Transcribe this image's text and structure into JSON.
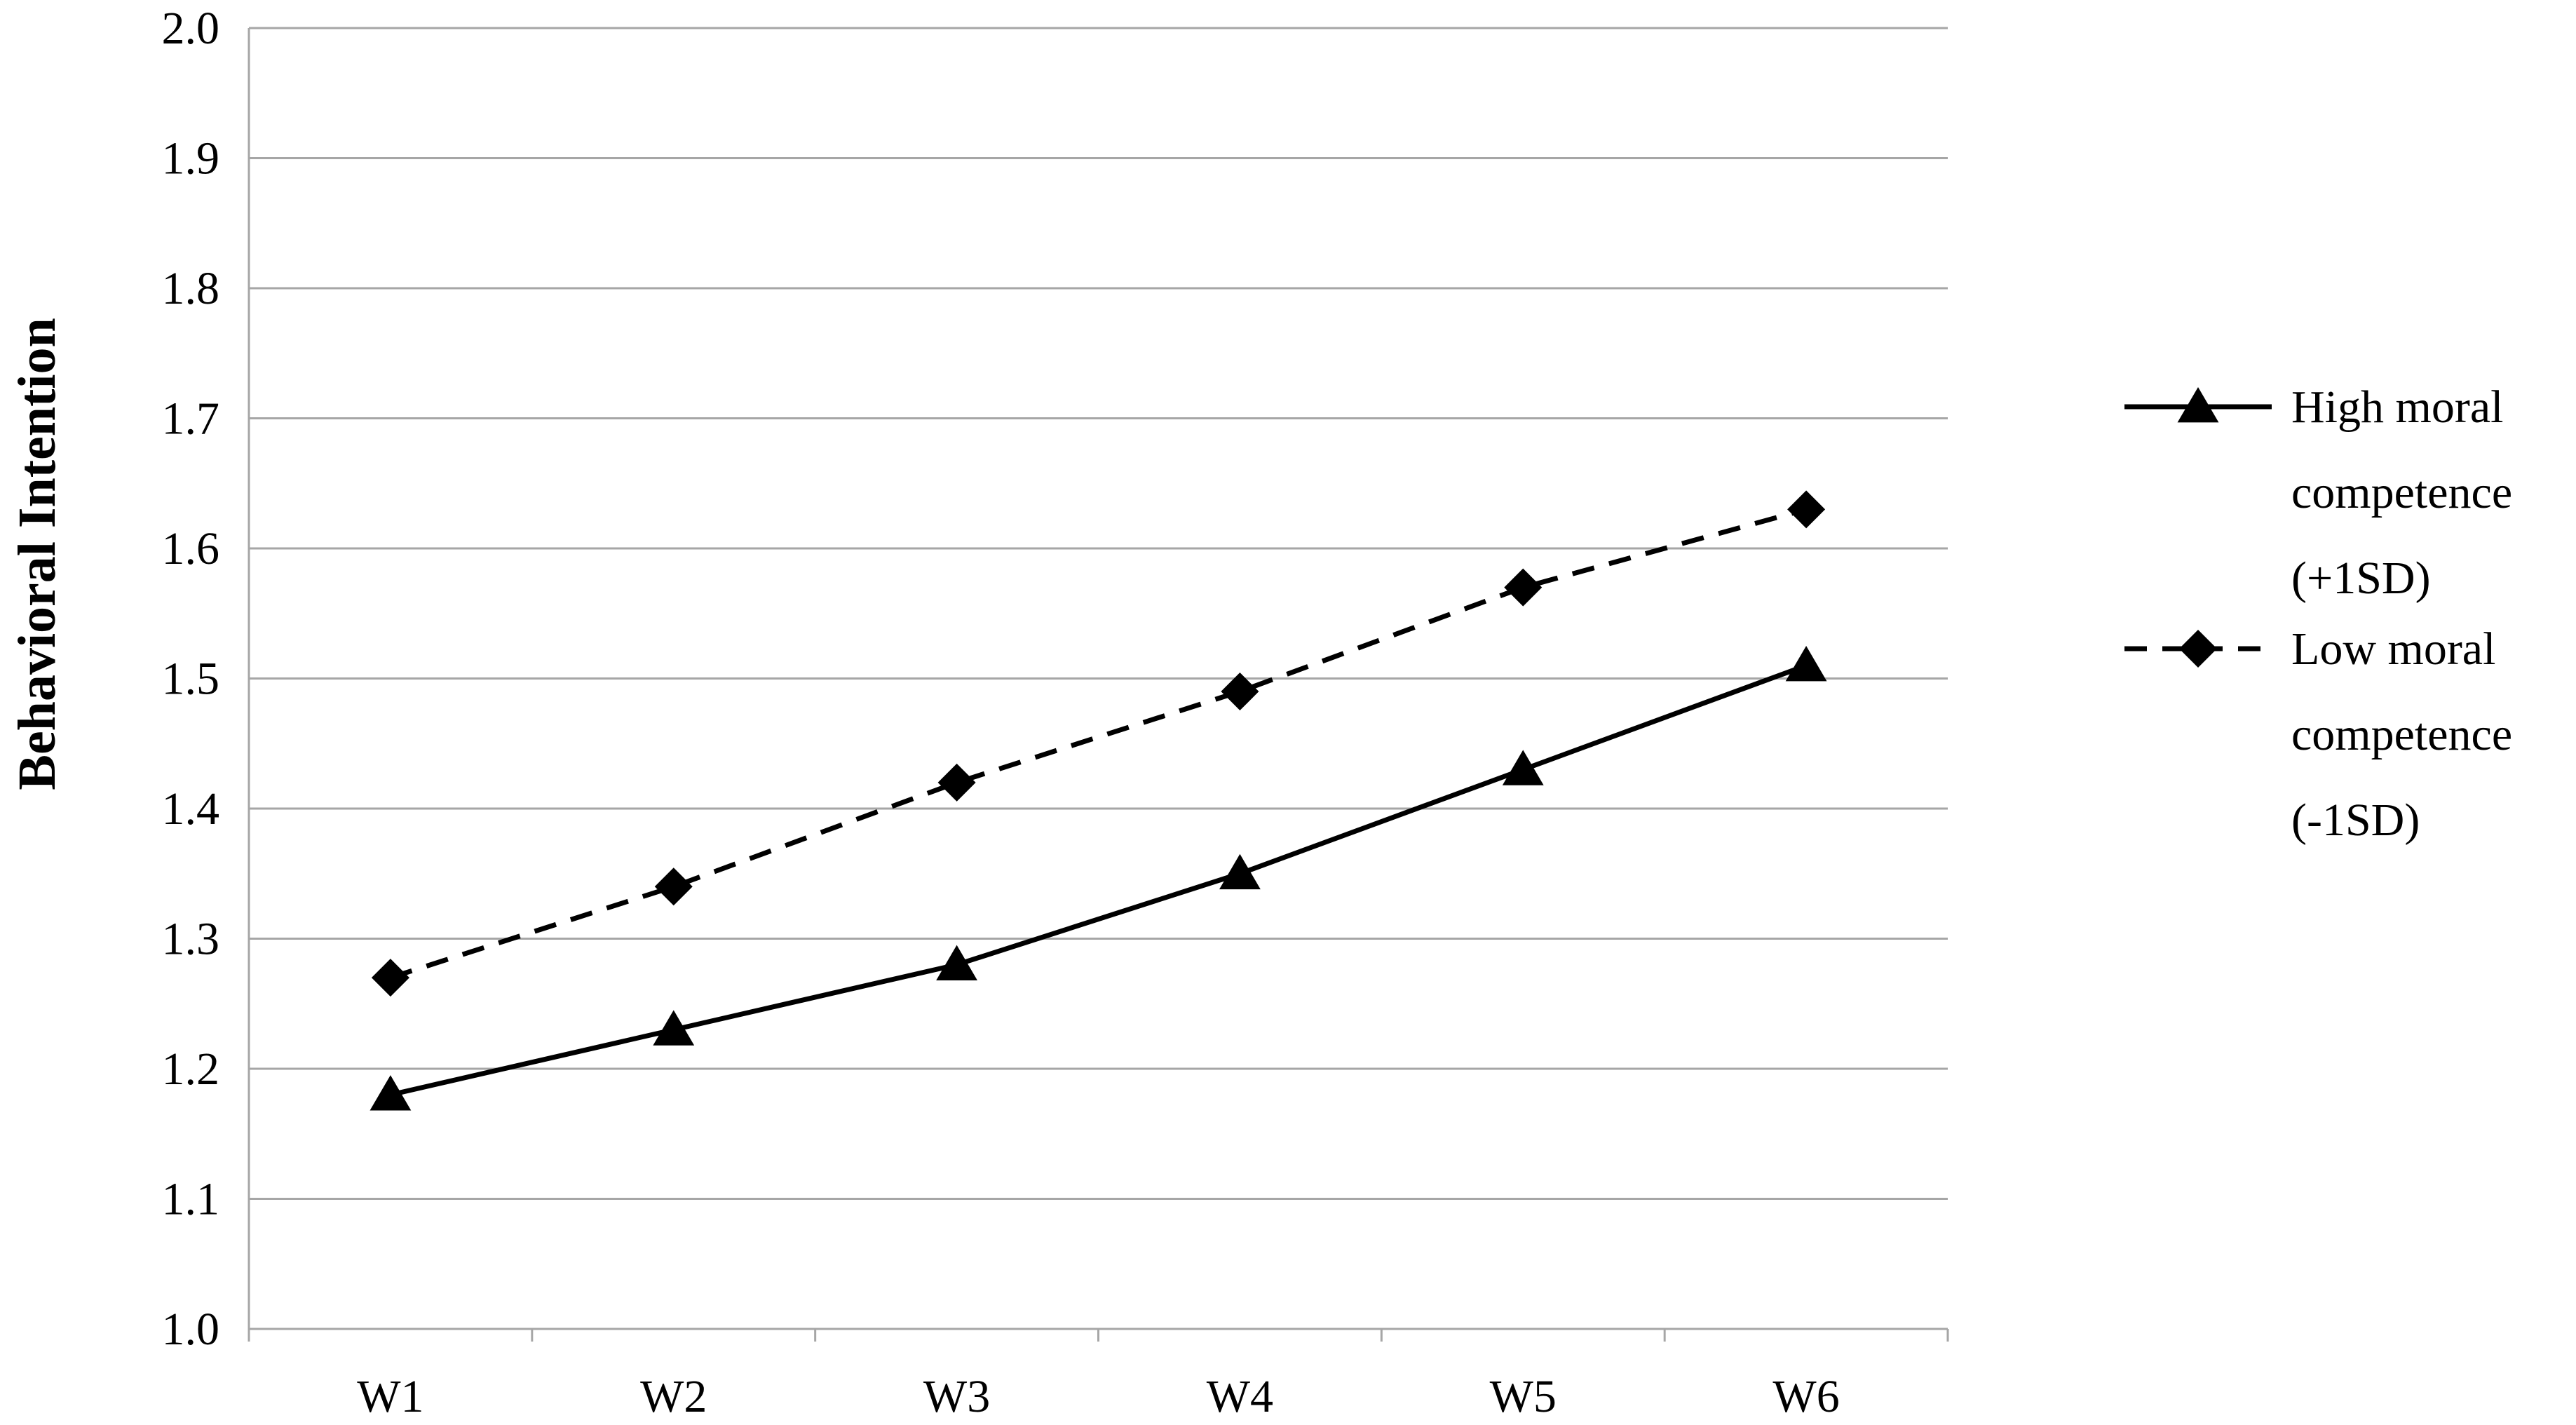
{
  "chart_data": {
    "type": "line",
    "title": "",
    "xlabel": "",
    "ylabel": "Behavioral Intention",
    "categories": [
      "W1",
      "W2",
      "W3",
      "W4",
      "W5",
      "W6"
    ],
    "ylim": [
      1.0,
      2.0
    ],
    "yticks": [
      "1.0",
      "1.1",
      "1.2",
      "1.3",
      "1.4",
      "1.5",
      "1.6",
      "1.7",
      "1.8",
      "1.9",
      "2.0"
    ],
    "grid": true,
    "legend_position": "right",
    "series": [
      {
        "name": "High moral competence (+1SD)",
        "name_lines": [
          "High moral",
          "competence",
          "(+1SD)"
        ],
        "values": [
          1.18,
          1.23,
          1.28,
          1.35,
          1.43,
          1.51
        ],
        "line_style": "solid",
        "marker": "triangle",
        "color": "#000000"
      },
      {
        "name": "Low moral competence (-1SD)",
        "name_lines": [
          "Low moral",
          "competence",
          "(-1SD)"
        ],
        "values": [
          1.27,
          1.34,
          1.42,
          1.49,
          1.57,
          1.63
        ],
        "line_style": "dashed",
        "marker": "diamond",
        "color": "#000000"
      }
    ],
    "colors": {
      "grid": "#a6a6a6",
      "axis": "#a6a6a6",
      "text": "#000000"
    }
  }
}
